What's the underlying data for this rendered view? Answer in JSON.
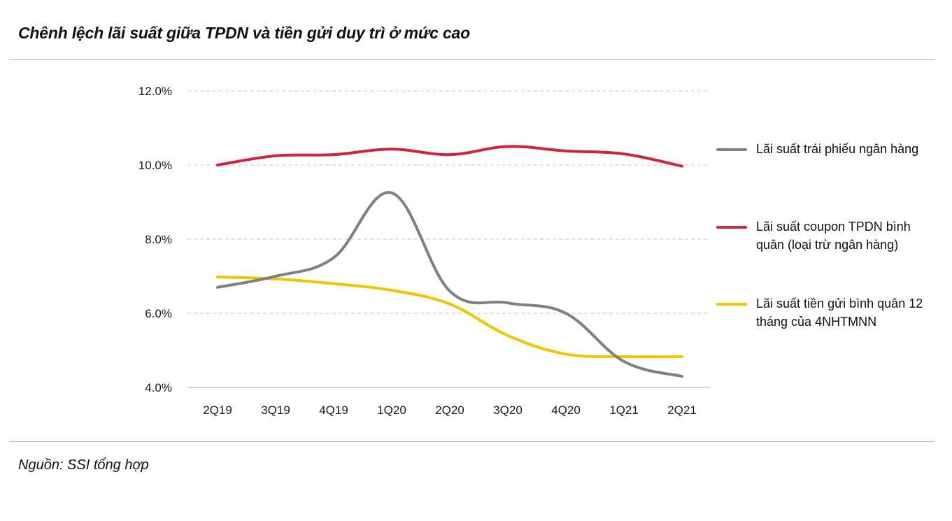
{
  "page": {
    "title": "Chênh lệch lãi suất giữa TPDN và tiền gửi duy trì ở mức cao",
    "source": "Nguồn: SSI tổng hợp"
  },
  "chart_data": {
    "type": "line",
    "title": "Chênh lệch lãi suất giữa TPDN và tiền gửi duy trì ở mức cao",
    "xlabel": "",
    "ylabel": "",
    "categories": [
      "2Q19",
      "3Q19",
      "4Q19",
      "1Q20",
      "2Q20",
      "3Q20",
      "4Q20",
      "1Q21",
      "2Q21"
    ],
    "yticks": [
      "4.0%",
      "6.0%",
      "8.0%",
      "10.0%",
      "12.0%"
    ],
    "ylim": [
      4.0,
      12.0
    ],
    "grid": true,
    "legend_position": "right",
    "series": [
      {
        "name": "Lãi suất trái phiếu ngân hàng",
        "color": "#808080",
        "values": [
          6.7,
          7.0,
          7.5,
          9.25,
          6.6,
          6.28,
          6.0,
          4.7,
          4.3
        ]
      },
      {
        "name": "Lãi suất coupon TPDN bình quân (loại trừ ngân hàng)",
        "color": "#d2233c",
        "values": [
          10.0,
          10.25,
          10.28,
          10.43,
          10.28,
          10.5,
          10.38,
          10.3,
          9.97
        ]
      },
      {
        "name": "Lãi suất tiền gửi bình quân 12 tháng của 4NHTMNN",
        "color": "#f5c400",
        "values": [
          6.98,
          6.93,
          6.8,
          6.62,
          6.25,
          5.4,
          4.9,
          4.83,
          4.83
        ]
      }
    ]
  }
}
